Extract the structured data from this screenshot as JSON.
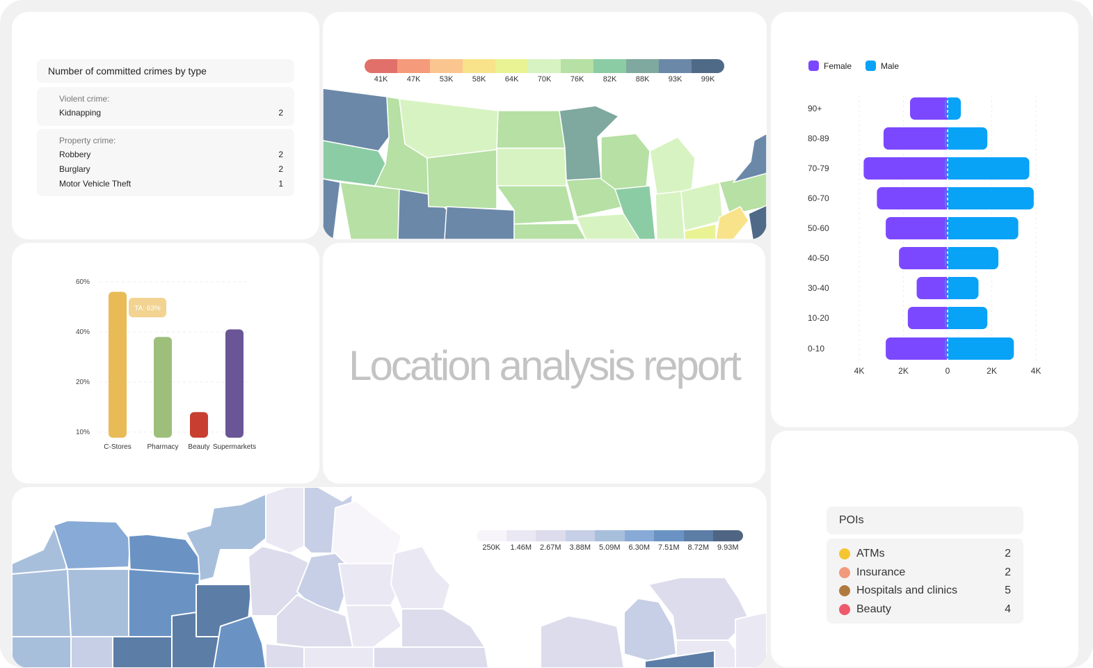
{
  "crimes": {
    "title": "Number of committed crimes by type",
    "groups": [
      {
        "title": "Violent crime:",
        "items": [
          {
            "label": "Kidnapping",
            "count": "2"
          }
        ]
      },
      {
        "title": "Property crime:",
        "items": [
          {
            "label": "Robbery",
            "count": "2"
          },
          {
            "label": "Burglary",
            "count": "2"
          },
          {
            "label": "Motor Vehicle Theft",
            "count": "1"
          }
        ]
      }
    ]
  },
  "income_map": {
    "legend": {
      "labels": [
        "41K",
        "47K",
        "53K",
        "58K",
        "64K",
        "70K",
        "76K",
        "82K",
        "88K",
        "93K",
        "99K"
      ],
      "colors": [
        "#e2706a",
        "#f59a7b",
        "#fbc58f",
        "#f8e38a",
        "#e9f394",
        "#d8f3c2",
        "#b6e0a4",
        "#8ccca4",
        "#7fa89e",
        "#6b88a8",
        "#4f6a87"
      ]
    }
  },
  "pop_map": {
    "legend": {
      "labels": [
        "250K",
        "1.46M",
        "2.67M",
        "3.88M",
        "5.09M",
        "6.30M",
        "7.51M",
        "8.72M",
        "9.93M"
      ],
      "colors": [
        "#f8f5fa",
        "#eae8f3",
        "#dcdcec",
        "#c6cfe6",
        "#a8bfdc",
        "#88aad6",
        "#6a93c4",
        "#5c7da6",
        "#4f6583"
      ]
    }
  },
  "report": {
    "title": "Location analysis report"
  },
  "chart_data": [
    {
      "type": "bar",
      "categories": [
        "C-Stores",
        "Pharmacy",
        "Beauty",
        "Supermarkets"
      ],
      "values": [
        56,
        38,
        14,
        41
      ],
      "colors": [
        "#e8bb57",
        "#9dbf7b",
        "#c83f32",
        "#6a5596"
      ],
      "ytick_values": [
        10,
        20,
        40,
        60
      ],
      "ytick_labels": [
        "10%",
        "20%",
        "40%",
        "60%"
      ],
      "annotation": {
        "category": "C-Stores",
        "text": "TA: 63%"
      }
    },
    {
      "type": "bar",
      "orientation": "horizontal",
      "categories": [
        "90+",
        "80-89",
        "70-79",
        "60-70",
        "50-60",
        "40-50",
        "30-40",
        "10-20",
        "0-10"
      ],
      "series": [
        {
          "name": "Female",
          "color": "#7c48ff",
          "values": [
            1700,
            2900,
            3800,
            3200,
            2800,
            2200,
            1400,
            1800,
            2800
          ]
        },
        {
          "name": "Male",
          "color": "#08a2f7",
          "values": [
            600,
            1800,
            3700,
            3900,
            3200,
            2300,
            1400,
            1800,
            3000
          ]
        }
      ],
      "xlim": [
        -4000,
        4000
      ],
      "xtick_values": [
        -4000,
        -2000,
        0,
        2000,
        4000
      ],
      "xtick_labels": [
        "4K",
        "2K",
        "0",
        "2K",
        "4K"
      ]
    }
  ],
  "pois": {
    "title": "POIs",
    "items": [
      {
        "label": "ATMs",
        "count": "2",
        "color": "#f5c632"
      },
      {
        "label": "Insurance",
        "count": "2",
        "color": "#f09a7b"
      },
      {
        "label": "Hospitals and clinics",
        "count": "5",
        "color": "#b07a3f"
      },
      {
        "label": "Beauty",
        "count": "4",
        "color": "#ee5a6c"
      }
    ]
  }
}
